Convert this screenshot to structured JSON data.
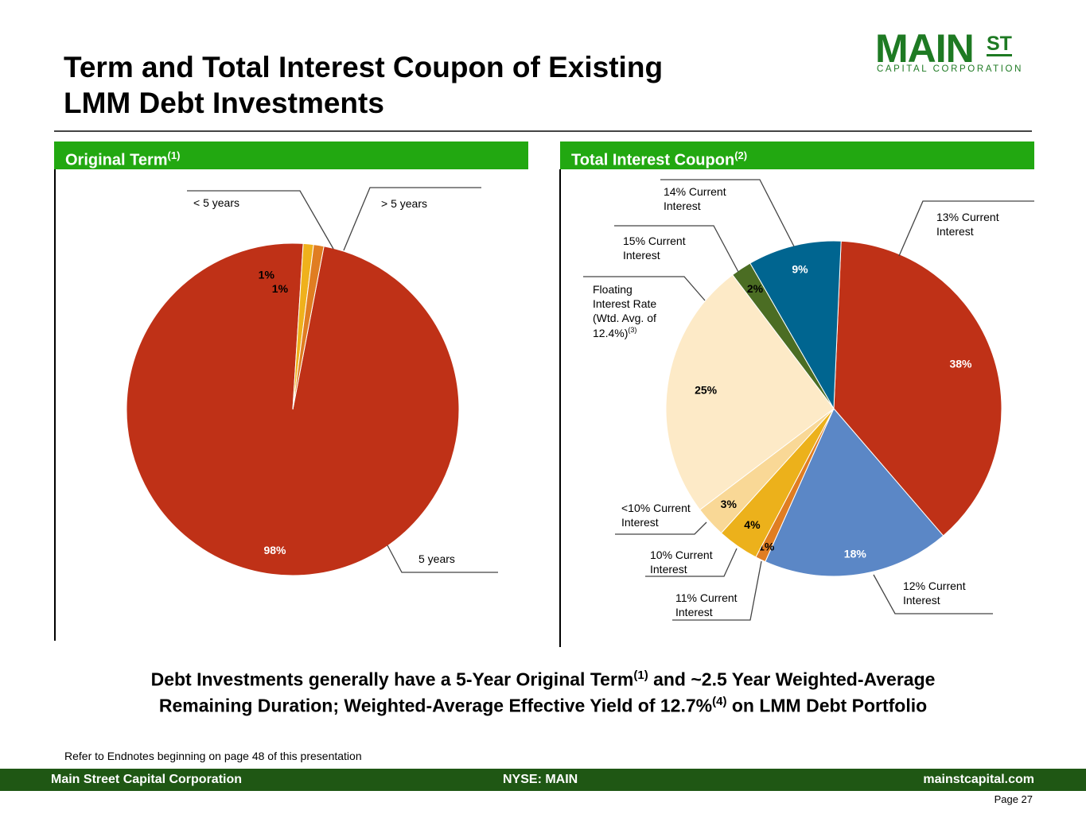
{
  "title": {
    "line1": "Term and Total Interest Coupon of Existing",
    "line2": "LMM Debt Investments"
  },
  "logo": {
    "main": "MAIN",
    "st": "ST",
    "sub": "CAPITAL CORPORATION"
  },
  "panels": {
    "left": {
      "header": "Original Term",
      "sup": "(1)"
    },
    "right": {
      "header": "Total Interest Coupon",
      "sup": "(2)"
    }
  },
  "chart_data": [
    {
      "type": "pie",
      "title": "Original Term",
      "slices": [
        {
          "label": "5 years",
          "value": 98,
          "pct_label": "98%",
          "color": "#bf3117"
        },
        {
          "label": "< 5 years",
          "value": 1,
          "pct_label": "1%",
          "color": "#efb11c"
        },
        {
          "label": "> 5 years",
          "value": 1,
          "pct_label": "1%",
          "color": "#e07d22"
        }
      ]
    },
    {
      "type": "pie",
      "title": "Total Interest Coupon",
      "slices": [
        {
          "label": "13% Current Interest",
          "value": 38,
          "pct_label": "38%",
          "color": "#bf3117"
        },
        {
          "label": "12% Current Interest",
          "value": 18,
          "pct_label": "18%",
          "color": "#5b87c6"
        },
        {
          "label": "11% Current Interest",
          "value": 1,
          "pct_label": "1%",
          "color": "#e07d22"
        },
        {
          "label": "10% Current Interest",
          "value": 4,
          "pct_label": "4%",
          "color": "#ecb11b"
        },
        {
          "label": "<10% Current Interest",
          "value": 3,
          "pct_label": "3%",
          "color": "#f9d896"
        },
        {
          "label": "Floating Interest Rate (Wtd. Avg. of 12.4%)(3)",
          "value": 25,
          "pct_label": "25%",
          "color": "#fdeac7"
        },
        {
          "label": "15% Current Interest",
          "value": 2,
          "pct_label": "2%",
          "color": "#4b6d23"
        },
        {
          "label": "14% Current Interest",
          "value": 9,
          "pct_label": "9%",
          "color": "#006590"
        }
      ]
    }
  ],
  "labels": {
    "left": {
      "lt5": "< 5 years",
      "gt5": "> 5 years",
      "eq5": "5 years"
    },
    "right": {
      "c14": [
        "14% Current",
        "Interest"
      ],
      "c15": [
        "15% Current",
        "Interest"
      ],
      "c13": [
        "13% Current",
        "Interest"
      ],
      "floating": [
        "Floating",
        "Interest Rate",
        "(Wtd. Avg. of",
        "12.4%)"
      ],
      "floating_sup": "(3)",
      "c10lt": [
        "<10% Current",
        "Interest"
      ],
      "c10": [
        "10% Current",
        "Interest"
      ],
      "c11": [
        "11% Current",
        "Interest"
      ],
      "c12": [
        "12% Current",
        "Interest"
      ]
    }
  },
  "summary": {
    "line1_a": "Debt Investments generally have a 5-Year Original Term",
    "sup1": "(1)",
    "line1_b": " and ~2.5 Year Weighted-Average",
    "line2_a": "Remaining Duration; Weighted-Average Effective Yield of 12.7%",
    "sup2": "(4)",
    "line2_b": " on LMM Debt Portfolio"
  },
  "endnote": "Refer to Endnotes beginning on page 48 of this presentation",
  "footer": {
    "left": "Main Street Capital Corporation",
    "center": "NYSE: MAIN",
    "right": "mainstcapital.com"
  },
  "page": "Page  27"
}
